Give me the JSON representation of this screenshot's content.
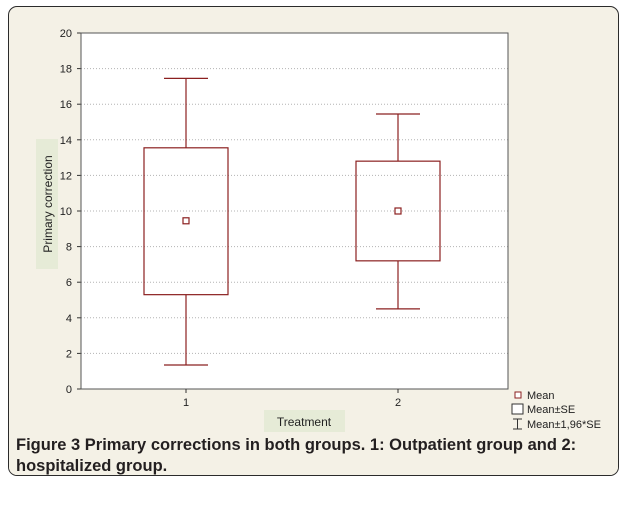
{
  "caption": {
    "label": "Figure 3",
    "text": "Primary corrections in both groups. 1: Outpatient group and 2: hospitalized group."
  },
  "chart_data": {
    "type": "box",
    "xlabel": "Treatment",
    "ylabel": "Primary correction",
    "ylim": [
      0,
      20
    ],
    "yticks": [
      0,
      2,
      4,
      6,
      8,
      10,
      12,
      14,
      16,
      18,
      20
    ],
    "categories": [
      "1",
      "2"
    ],
    "boxes": [
      {
        "category": "1",
        "mean": 9.45,
        "se_low": 5.3,
        "se_high": 13.55,
        "ci_low": 1.35,
        "ci_high": 17.45
      },
      {
        "category": "2",
        "mean": 10.0,
        "se_low": 7.2,
        "se_high": 12.8,
        "ci_low": 4.5,
        "ci_high": 15.45
      }
    ],
    "legend": {
      "position": "bottom-right",
      "entries": [
        {
          "symbol": "square-marker",
          "label": "Mean"
        },
        {
          "symbol": "box",
          "label": "Mean±SE"
        },
        {
          "symbol": "whisker",
          "label": "Mean±1,96*SE"
        }
      ]
    },
    "grid": true,
    "colors": {
      "plot_bg": "#ffffff",
      "series": "#8b2020",
      "grid": "#b3b3b3",
      "label_bg": "#e6ebd7"
    }
  }
}
